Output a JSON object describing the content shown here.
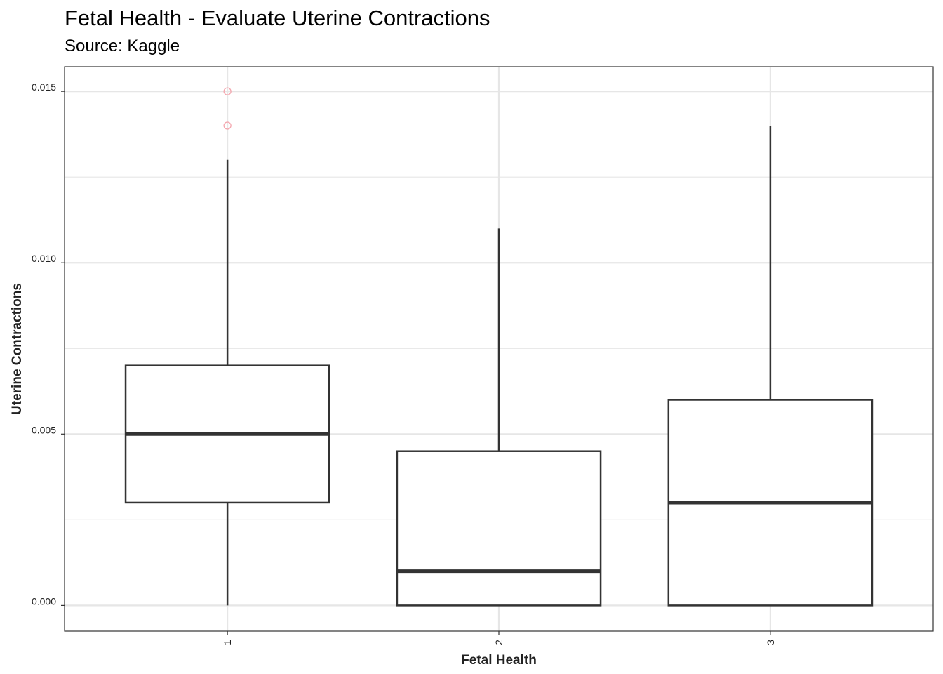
{
  "chart_data": {
    "type": "boxplot",
    "title": "Fetal Health - Evaluate Uterine Contractions",
    "subtitle": "Source: Kaggle",
    "xlabel": "Fetal Health",
    "ylabel": "Uterine Contractions",
    "categories": [
      "1",
      "2",
      "3"
    ],
    "y_ticks": [
      "0.000",
      "0.005",
      "0.010",
      "0.015"
    ],
    "y_tick_values": [
      0.0,
      0.005,
      0.01,
      0.015
    ],
    "ylim": [
      -0.00075,
      0.01572
    ],
    "grid": true,
    "boxes": [
      {
        "category": "1",
        "whisker_low": 0.0,
        "q1": 0.003,
        "median": 0.005,
        "q3": 0.007,
        "whisker_high": 0.013,
        "outliers": [
          0.014,
          0.015
        ]
      },
      {
        "category": "2",
        "whisker_low": 0.0,
        "q1": 0.0,
        "median": 0.001,
        "q3": 0.0045,
        "whisker_high": 0.011,
        "outliers": []
      },
      {
        "category": "3",
        "whisker_low": 0.0,
        "q1": 0.0,
        "median": 0.003,
        "q3": 0.006,
        "whisker_high": 0.014,
        "outliers": []
      }
    ],
    "colors": {
      "box": "#333333",
      "outlier": "#F4A6AE",
      "grid": "#E6E6E6",
      "panel_border": "#333333"
    }
  }
}
